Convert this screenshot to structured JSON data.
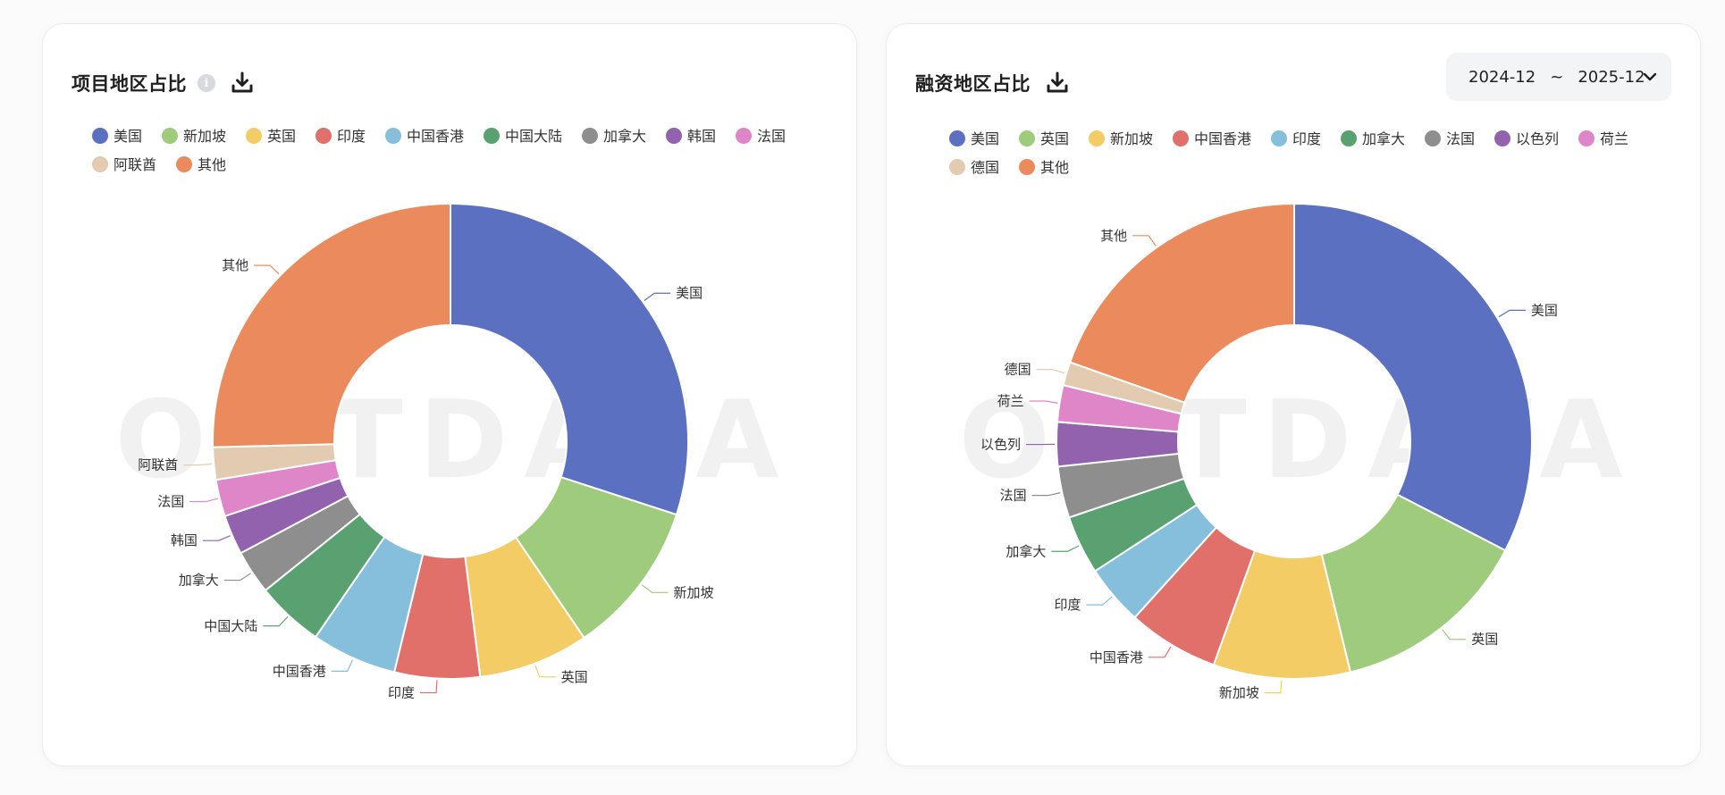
{
  "watermark": "OOTDATA",
  "charts": [
    {
      "id": "left",
      "title": "项目地区占比",
      "has_info_icon": true,
      "icons": {
        "info": "info-icon",
        "download": "download-icon"
      },
      "date_range": null
    },
    {
      "id": "right",
      "title": "融资地区占比",
      "has_info_icon": false,
      "icons": {
        "download": "download-icon",
        "dropdown": "chevron-down-icon"
      },
      "date_range": {
        "start": "2024-12",
        "separator": "~",
        "end": "2025-12"
      }
    }
  ],
  "chart_data": [
    {
      "type": "pie",
      "donut": true,
      "title": "项目地区占比",
      "legend": "top",
      "categories": [
        "美国",
        "新加坡",
        "英国",
        "印度",
        "中国香港",
        "中国大陆",
        "加拿大",
        "韩国",
        "法国",
        "阿联酋",
        "其他"
      ],
      "values": [
        30.0,
        10.5,
        7.5,
        5.8,
        5.8,
        4.6,
        3.0,
        2.7,
        2.5,
        2.2,
        25.4
      ],
      "colors": [
        "#5b70c0",
        "#9fcb7c",
        "#f3cc66",
        "#e16f6a",
        "#85bfdc",
        "#5aa172",
        "#8e8e8e",
        "#9362ae",
        "#df86c8",
        "#e2cbb1",
        "#eb8b5d"
      ]
    },
    {
      "type": "pie",
      "donut": true,
      "title": "融资地区占比",
      "legend": "top",
      "categories": [
        "美国",
        "英国",
        "新加坡",
        "中国香港",
        "印度",
        "加拿大",
        "法国",
        "以色列",
        "荷兰",
        "德国",
        "其他"
      ],
      "values": [
        32.6,
        13.6,
        9.3,
        6.2,
        4.1,
        4.0,
        3.5,
        3.0,
        2.5,
        1.6,
        19.6
      ],
      "colors": [
        "#5b70c0",
        "#9fcb7c",
        "#f3cc66",
        "#e16f6a",
        "#85bfdc",
        "#5aa172",
        "#8e8e8e",
        "#9362ae",
        "#df86c8",
        "#e2cbb1",
        "#eb8b5d"
      ]
    }
  ]
}
